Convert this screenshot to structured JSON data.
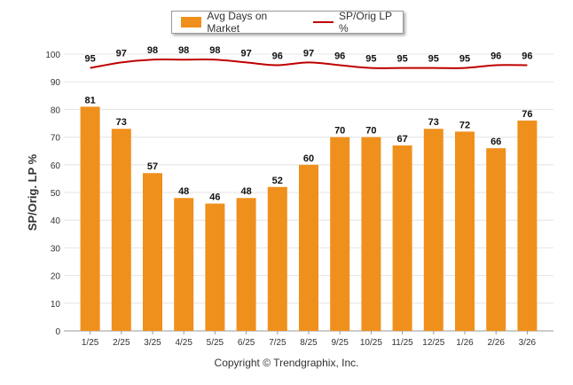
{
  "chart_data": {
    "type": "bar",
    "categories": [
      "1/25",
      "2/25",
      "3/25",
      "4/25",
      "5/25",
      "6/25",
      "7/25",
      "8/25",
      "9/25",
      "10/25",
      "11/25",
      "12/25",
      "1/26",
      "2/26",
      "3/26"
    ],
    "series": [
      {
        "name": "Avg Days on Market",
        "type": "bar",
        "color": "#f0901c",
        "values": [
          81,
          73,
          57,
          48,
          46,
          48,
          52,
          60,
          70,
          70,
          67,
          73,
          72,
          66,
          76
        ]
      },
      {
        "name": "SP/Orig LP %",
        "type": "line",
        "color": "#c00000",
        "values": [
          95,
          97,
          98,
          98,
          98,
          97,
          96,
          97,
          96,
          95,
          95,
          95,
          95,
          96,
          96
        ]
      }
    ],
    "ylabel": "SP/Orig. LP %",
    "ylim": [
      0,
      100
    ],
    "yticks": [
      "0",
      "10",
      "20",
      "30",
      "40",
      "50",
      "60",
      "70",
      "80",
      "90",
      "100"
    ]
  },
  "legend": {
    "bar_label": "Avg Days on Market",
    "line_label": "SP/Orig LP %"
  },
  "copyright": "Copyright © Trendgraphix, Inc."
}
